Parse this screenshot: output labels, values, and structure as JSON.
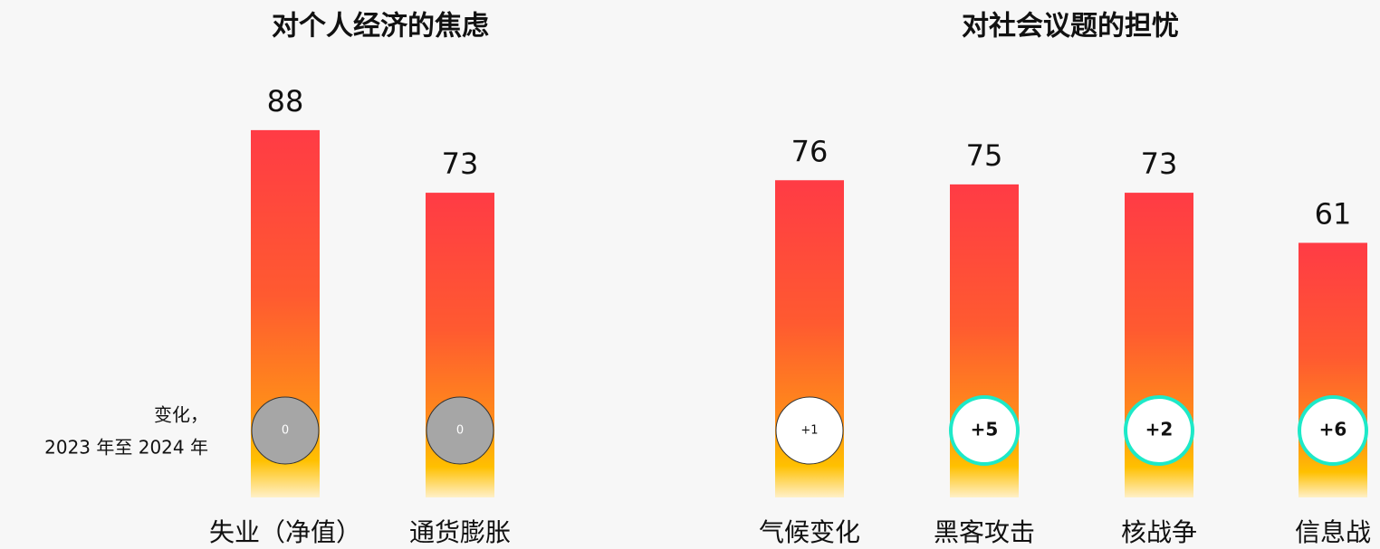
{
  "chart_data": [
    {
      "type": "bar",
      "title": "对个人经济的焦虑",
      "categories": [
        "失业（净值）",
        "通货膨胀"
      ],
      "values": [
        88,
        73
      ],
      "changes": [
        0,
        0
      ],
      "change_labels": [
        "0",
        "0"
      ],
      "annotation": [
        "变化，",
        "2023 年至 2024 年"
      ],
      "ylim": [
        0,
        100
      ],
      "grid": false
    },
    {
      "type": "bar",
      "title": "对社会议题的担忧",
      "categories": [
        "气候变化",
        "黑客攻击",
        "核战争",
        "信息战"
      ],
      "values": [
        76,
        75,
        73,
        61
      ],
      "changes": [
        1,
        5,
        2,
        6
      ],
      "change_labels": [
        "+1",
        "+5",
        "+2",
        "+6"
      ],
      "ylim": [
        0,
        100
      ],
      "grid": false
    }
  ]
}
